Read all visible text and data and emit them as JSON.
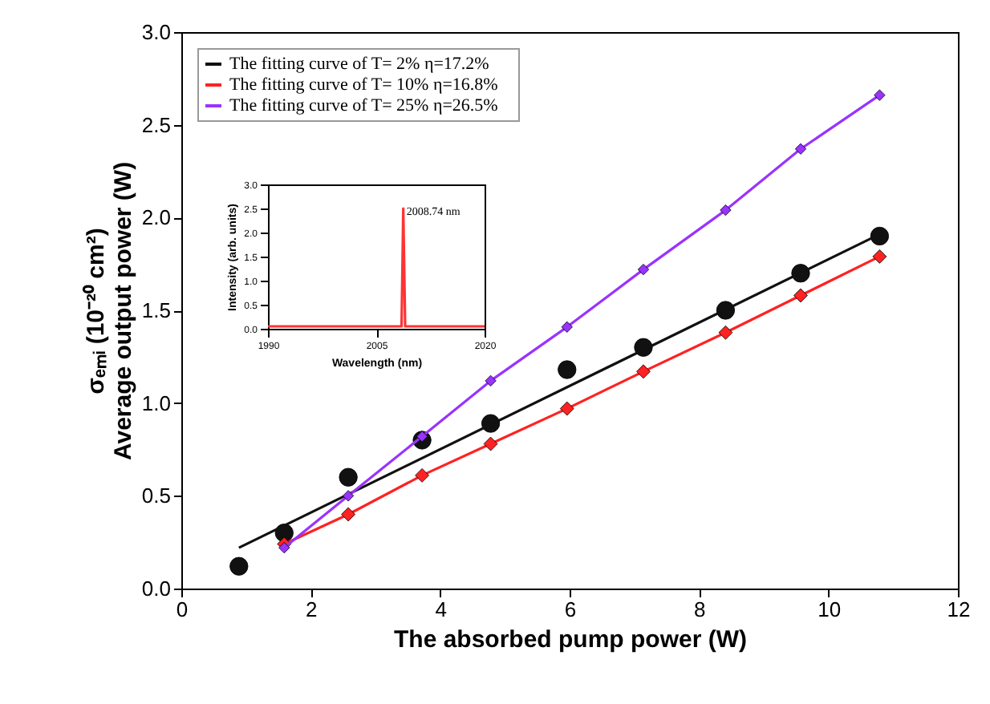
{
  "chart_data": [
    {
      "type": "line",
      "xlabel": "The absorbed pump power (W)",
      "ylabel": "σₑₘᵢ (10⁻²⁰ cm²)\nAverage output power (W)",
      "xlim": [
        0,
        12
      ],
      "xticks": [
        0,
        2,
        4,
        6,
        8,
        10,
        12
      ],
      "ylim": [
        0,
        3
      ],
      "yticks": [
        {
          "value": 0,
          "label": "0.0"
        },
        {
          "value": 0.5,
          "label": "0.5"
        },
        {
          "value": 1,
          "label": "1.0"
        },
        {
          "value": 1.5,
          "label": "1.5"
        },
        {
          "value": 2,
          "label": "2.0"
        },
        {
          "value": 2.5,
          "label": "2.5"
        },
        {
          "value": 3,
          "label": "3.0"
        }
      ],
      "grid": false,
      "legend": "top left",
      "series": [
        {
          "type": "scatter",
          "color": "#111111",
          "marker": "circle",
          "x": [
            0.89,
            1.59,
            2.58,
            3.72,
            4.78,
            5.96,
            7.14,
            8.41,
            9.57,
            10.79
          ],
          "values": [
            0.12,
            0.3,
            0.6,
            0.8,
            0.89,
            1.18,
            1.3,
            1.5,
            1.7,
            1.9
          ]
        },
        {
          "type": "line",
          "name": "The fitting curve of T= 2%    η=17.2%",
          "color": "#111111",
          "x": [
            0.89,
            10.79
          ],
          "values": [
            0.22,
            1.91
          ]
        },
        {
          "type": "line",
          "name": "The fitting curve of T= 10%    η=16.8%",
          "color": "#ff2222",
          "marker": "diamond",
          "x": [
            1.59,
            2.58,
            3.72,
            4.78,
            5.96,
            7.14,
            8.41,
            9.57,
            10.79
          ],
          "values": [
            0.24,
            0.4,
            0.61,
            0.78,
            0.97,
            1.17,
            1.38,
            1.58,
            1.79
          ]
        },
        {
          "type": "line",
          "name": "The fitting curve of T= 25%    η=26.5%",
          "color": "#9933ff",
          "marker": "diamond",
          "x": [
            1.59,
            2.58,
            3.72,
            4.78,
            5.96,
            7.14,
            8.41,
            9.57,
            10.79
          ],
          "values": [
            0.22,
            0.5,
            0.82,
            1.12,
            1.41,
            1.72,
            2.04,
            2.37,
            2.66
          ]
        }
      ]
    },
    {
      "type": "line",
      "xlabel": "Wavelength (nm)",
      "ylabel": "Intensity (arb. units)",
      "xlim": [
        1990,
        2020
      ],
      "xticks": [
        1990,
        2005,
        2020
      ],
      "ylim": [
        0,
        3
      ],
      "yticks": [
        {
          "value": 0,
          "label": "0.0"
        },
        {
          "value": 0.5,
          "label": "0.5"
        },
        {
          "value": 1,
          "label": "1.0"
        },
        {
          "value": 1.5,
          "label": "1.5"
        },
        {
          "value": 2,
          "label": "2.0"
        },
        {
          "value": 2.5,
          "label": "2.5"
        },
        {
          "value": 3,
          "label": "3.0"
        }
      ],
      "annotations": [
        {
          "text": "2008.74 nm",
          "x": 2008.74,
          "y": 2.5
        }
      ],
      "series": [
        {
          "color": "#ff3333",
          "x": [
            1990,
            2008.5,
            2008.6,
            2008.74,
            2008.9,
            2009,
            2020
          ],
          "values": [
            0.05,
            0.05,
            1.0,
            2.5,
            1.0,
            0.05,
            0.05
          ]
        }
      ]
    }
  ]
}
